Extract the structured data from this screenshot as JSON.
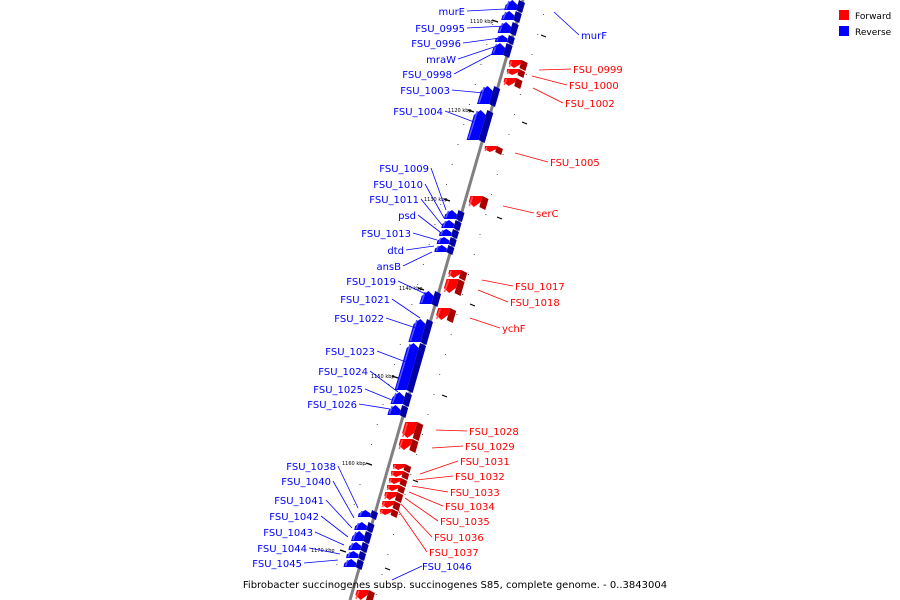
{
  "caption": "Fibrobacter succinogenes subsp. succinogenes S85, complete genome. - 0..3843004",
  "colors": {
    "forward": "#ff0000",
    "reverse": "#0000ff",
    "backbone": "#808080"
  },
  "legend": [
    {
      "key": "forward",
      "label": "Forward",
      "color": "#ff0000"
    },
    {
      "key": "reverse",
      "label": "Reverse",
      "color": "#0000ff"
    }
  ],
  "ticks": [
    "1110 kbp",
    "1120 kbp",
    "1130 kbp",
    "1140 kbp",
    "1150 kbp",
    "1160 kbp",
    "1170 kbp"
  ],
  "genes_reverse": [
    "murE",
    "FSU_0995",
    "FSU_0996",
    "mraW",
    "FSU_0998",
    "FSU_1003",
    "FSU_1004",
    "FSU_1009",
    "FSU_1010",
    "FSU_1011",
    "psd",
    "FSU_1013",
    "dtd",
    "ansB",
    "FSU_1019",
    "FSU_1021",
    "FSU_1022",
    "FSU_1023",
    "FSU_1024",
    "FSU_1025",
    "FSU_1026",
    "FSU_1038",
    "FSU_1040",
    "FSU_1041",
    "FSU_1042",
    "FSU_1043",
    "FSU_1044",
    "FSU_1045",
    "FSU_1046"
  ],
  "genes_forward": [
    "murF",
    "FSU_0999",
    "FSU_1000",
    "FSU_1002",
    "FSU_1005",
    "serC",
    "FSU_1017",
    "FSU_1018",
    "ychF",
    "FSU_1028",
    "FSU_1029",
    "FSU_1031",
    "FSU_1032",
    "FSU_1033",
    "FSU_1034",
    "FSU_1035",
    "FSU_1036",
    "FSU_1037"
  ]
}
